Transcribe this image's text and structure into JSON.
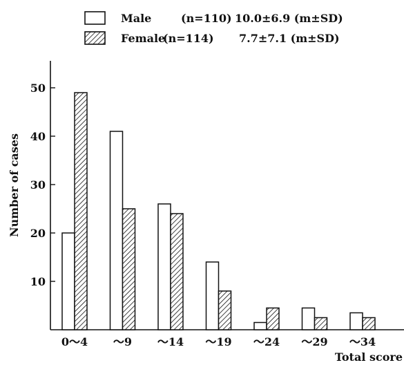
{
  "chart_data": {
    "type": "bar",
    "title": "",
    "xlabel": "Total score",
    "ylabel": "Number of cases",
    "categories": [
      "0～4",
      "～9",
      "～14",
      "～19",
      "～24",
      "～29",
      "～34"
    ],
    "series": [
      {
        "name": "Male",
        "values": [
          20,
          41,
          26,
          14,
          1.5,
          4.5,
          3.5
        ]
      },
      {
        "name": "Female",
        "values": [
          49,
          25,
          24,
          8,
          4.5,
          2.5,
          2.5
        ]
      }
    ],
    "ylim": [
      0,
      55
    ],
    "yticks": [
      10,
      20,
      30,
      40,
      50
    ],
    "legend": [
      {
        "series": "Male",
        "n_label": "(n=110)",
        "stat": "10.0±6.9 (m±SD)"
      },
      {
        "series": "Female",
        "n_label": "(n=114)",
        "stat": "7.7±7.1 (m±SD)"
      }
    ],
    "legend_position": "top-right",
    "grid": false,
    "colors": {
      "male_fill": "#ffffff",
      "female_hatch": "#111111",
      "stroke": "#111111"
    }
  }
}
